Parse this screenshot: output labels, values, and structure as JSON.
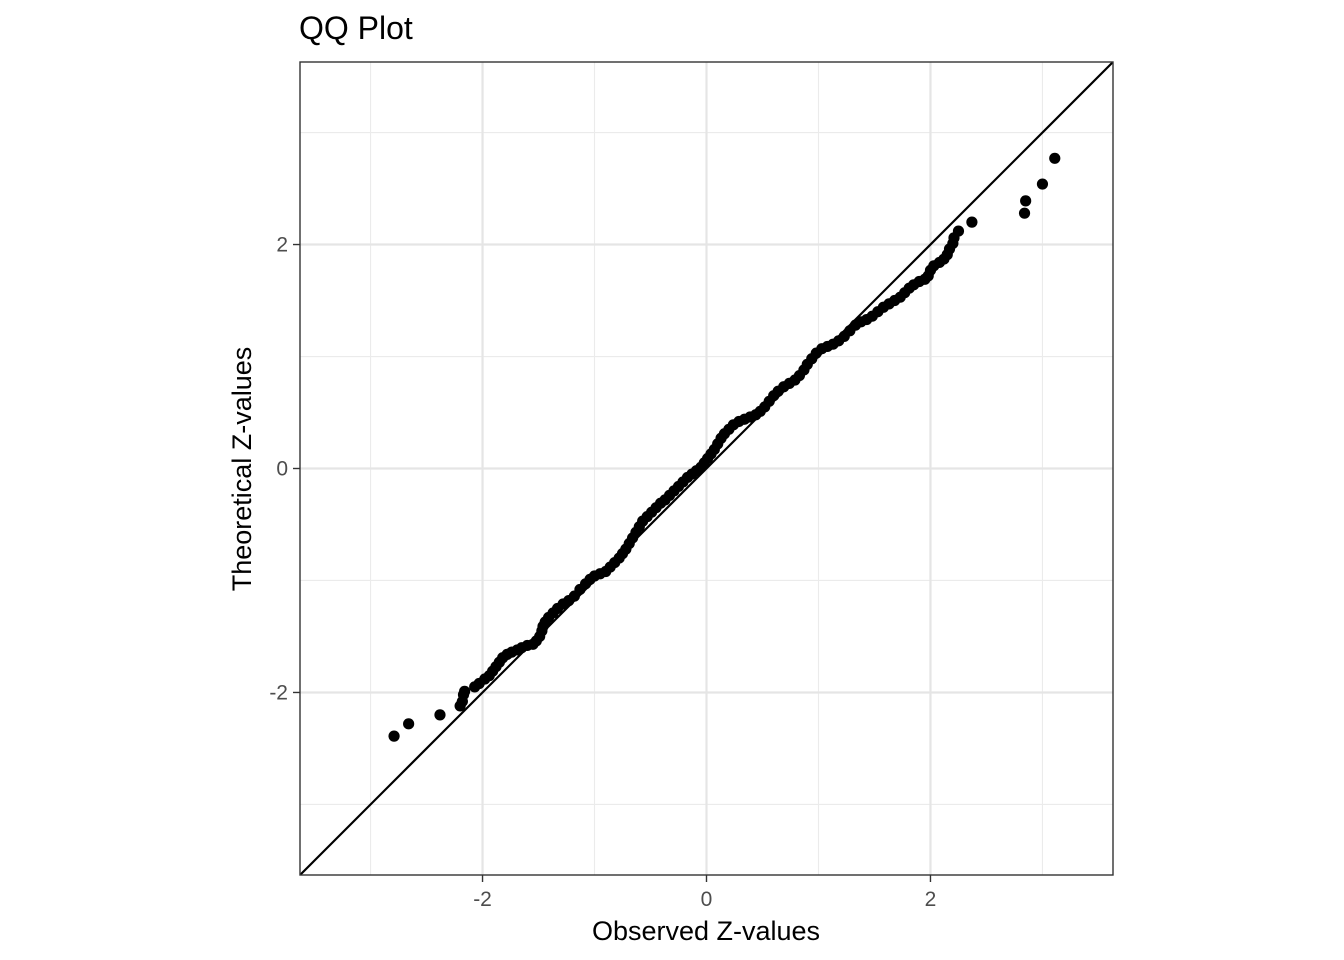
{
  "chart_data": {
    "type": "scatter",
    "title": "QQ Plot",
    "xlabel": "Observed Z-values",
    "ylabel": "Theoretical Z-values",
    "xlim": [
      -3.63,
      3.63
    ],
    "ylim": [
      -3.63,
      3.63
    ],
    "x_ticks": [
      -2,
      0,
      2
    ],
    "x_tick_labels": [
      "-2",
      "0",
      "2"
    ],
    "y_ticks": [
      -2,
      0,
      2
    ],
    "y_tick_labels": [
      "-2",
      "0",
      "2"
    ],
    "x_minor_grid": [
      -3,
      -1,
      1,
      3
    ],
    "y_minor_grid": [
      -3,
      -1,
      1,
      3
    ],
    "grid": true,
    "theme": "black-and-white",
    "reference_line": {
      "type": "identity",
      "slope": 1,
      "intercept": 0,
      "color": "#000000"
    },
    "point_color": "#000000",
    "series": [
      {
        "points": [
          [
            -2.79,
            -2.39
          ],
          [
            -2.66,
            -2.28
          ],
          [
            -2.38,
            -2.2
          ],
          [
            -2.2,
            -2.12
          ],
          [
            -2.18,
            -2.08
          ],
          [
            -2.17,
            -2.02
          ],
          [
            -2.16,
            -1.99
          ],
          [
            -2.07,
            -1.95
          ],
          [
            -2.03,
            -1.92
          ],
          [
            -1.98,
            -1.88
          ],
          [
            -1.94,
            -1.85
          ],
          [
            -1.91,
            -1.81
          ],
          [
            -1.88,
            -1.77
          ],
          [
            -1.85,
            -1.73
          ],
          [
            -1.82,
            -1.69
          ],
          [
            -1.78,
            -1.66
          ],
          [
            -1.74,
            -1.64
          ],
          [
            -1.69,
            -1.62
          ],
          [
            -1.65,
            -1.6
          ],
          [
            -1.6,
            -1.58
          ],
          [
            -1.55,
            -1.57
          ],
          [
            -1.52,
            -1.54
          ],
          [
            -1.49,
            -1.5
          ],
          [
            -1.47,
            -1.45
          ],
          [
            -1.46,
            -1.41
          ],
          [
            -1.44,
            -1.37
          ],
          [
            -1.41,
            -1.33
          ],
          [
            -1.37,
            -1.29
          ],
          [
            -1.33,
            -1.25
          ],
          [
            -1.28,
            -1.21
          ],
          [
            -1.23,
            -1.18
          ],
          [
            -1.18,
            -1.14
          ],
          [
            -1.13,
            -1.08
          ],
          [
            -1.08,
            -1.03
          ],
          [
            -1.04,
            -0.99
          ],
          [
            -1.0,
            -0.96
          ],
          [
            -0.95,
            -0.94
          ],
          [
            -0.9,
            -0.92
          ],
          [
            -0.86,
            -0.88
          ],
          [
            -0.82,
            -0.84
          ],
          [
            -0.78,
            -0.8
          ],
          [
            -0.75,
            -0.76
          ],
          [
            -0.72,
            -0.72
          ],
          [
            -0.69,
            -0.67
          ],
          [
            -0.66,
            -0.62
          ],
          [
            -0.63,
            -0.57
          ],
          [
            -0.6,
            -0.52
          ],
          [
            -0.57,
            -0.47
          ],
          [
            -0.53,
            -0.43
          ],
          [
            -0.49,
            -0.39
          ],
          [
            -0.45,
            -0.35
          ],
          [
            -0.41,
            -0.31
          ],
          [
            -0.37,
            -0.28
          ],
          [
            -0.33,
            -0.24
          ],
          [
            -0.29,
            -0.2
          ],
          [
            -0.25,
            -0.16
          ],
          [
            -0.21,
            -0.12
          ],
          [
            -0.17,
            -0.08
          ],
          [
            -0.13,
            -0.05
          ],
          [
            -0.09,
            -0.02
          ],
          [
            -0.05,
            0.01
          ],
          [
            -0.02,
            0.05
          ],
          [
            0.01,
            0.09
          ],
          [
            0.04,
            0.13
          ],
          [
            0.07,
            0.17
          ],
          [
            0.1,
            0.22
          ],
          [
            0.13,
            0.27
          ],
          [
            0.16,
            0.31
          ],
          [
            0.2,
            0.35
          ],
          [
            0.24,
            0.39
          ],
          [
            0.29,
            0.42
          ],
          [
            0.34,
            0.44
          ],
          [
            0.39,
            0.46
          ],
          [
            0.44,
            0.48
          ],
          [
            0.48,
            0.51
          ],
          [
            0.52,
            0.55
          ],
          [
            0.56,
            0.6
          ],
          [
            0.6,
            0.65
          ],
          [
            0.64,
            0.69
          ],
          [
            0.69,
            0.73
          ],
          [
            0.74,
            0.76
          ],
          [
            0.79,
            0.79
          ],
          [
            0.83,
            0.83
          ],
          [
            0.87,
            0.88
          ],
          [
            0.9,
            0.93
          ],
          [
            0.94,
            0.98
          ],
          [
            0.98,
            1.03
          ],
          [
            1.03,
            1.07
          ],
          [
            1.08,
            1.09
          ],
          [
            1.13,
            1.11
          ],
          [
            1.18,
            1.14
          ],
          [
            1.23,
            1.18
          ],
          [
            1.28,
            1.23
          ],
          [
            1.33,
            1.28
          ],
          [
            1.38,
            1.31
          ],
          [
            1.43,
            1.33
          ],
          [
            1.48,
            1.36
          ],
          [
            1.53,
            1.4
          ],
          [
            1.58,
            1.44
          ],
          [
            1.63,
            1.47
          ],
          [
            1.68,
            1.5
          ],
          [
            1.73,
            1.53
          ],
          [
            1.77,
            1.57
          ],
          [
            1.81,
            1.61
          ],
          [
            1.85,
            1.64
          ],
          [
            1.9,
            1.67
          ],
          [
            1.95,
            1.69
          ],
          [
            1.98,
            1.72
          ],
          [
            2.0,
            1.77
          ],
          [
            2.03,
            1.81
          ],
          [
            2.08,
            1.84
          ],
          [
            2.12,
            1.87
          ],
          [
            2.15,
            1.91
          ],
          [
            2.17,
            1.96
          ],
          [
            2.2,
            2.01
          ],
          [
            2.21,
            2.06
          ],
          [
            2.25,
            2.12
          ],
          [
            2.37,
            2.2
          ],
          [
            2.84,
            2.28
          ],
          [
            2.85,
            2.39
          ],
          [
            3.0,
            2.54
          ],
          [
            3.11,
            2.77
          ]
        ]
      }
    ]
  }
}
